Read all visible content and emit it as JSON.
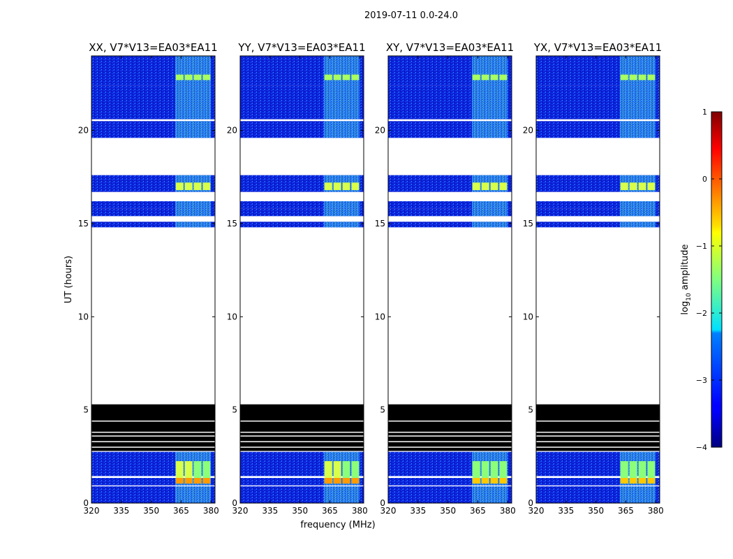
{
  "figure": {
    "title": "2019-07-11 0.0-24.0",
    "xlabel": "frequency (MHz)",
    "ylabel": "UT (hours)",
    "colorbar": {
      "label": "log10 amplitude",
      "label_prefix": "log",
      "label_sub": "10",
      "label_suffix": " amplitude",
      "range": [
        -4,
        1
      ],
      "ticks": [
        1,
        0,
        -1,
        -2,
        -3,
        -4
      ],
      "tick_labels": [
        "1",
        "0",
        "−1",
        "−2",
        "−3",
        "−4"
      ],
      "colormap": "jet"
    }
  },
  "chart_data": {
    "type": "heatmap",
    "description_units": {
      "x": "MHz",
      "y": "UT hours",
      "z": "log10 amplitude"
    },
    "xlim": [
      320,
      382
    ],
    "ylim": [
      0,
      24
    ],
    "xticks": [
      320,
      335,
      350,
      365,
      380
    ],
    "xtick_labels": [
      "320",
      "335",
      "350",
      "365",
      "380"
    ],
    "yticks": [
      0,
      5,
      10,
      15,
      20
    ],
    "ytick_labels": [
      "0",
      "5",
      "10",
      "15",
      "20"
    ],
    "panels": [
      {
        "title": "XX, V7*V13=EA03*EA11",
        "polarization": "XX"
      },
      {
        "title": "YY, V7*V13=EA03*EA11",
        "polarization": "YY"
      },
      {
        "title": "XY, V7*V13=EA03*EA11",
        "polarization": "XY"
      },
      {
        "title": "YX, V7*V13=EA03*EA11",
        "polarization": "YX"
      }
    ],
    "data_segments_ut": [
      [
        0.0,
        0.9
      ],
      [
        0.95,
        1.35
      ],
      [
        1.45,
        2.75
      ],
      [
        2.8,
        5.3
      ],
      [
        14.8,
        15.1
      ],
      [
        15.4,
        15.8
      ],
      [
        15.8,
        16.2
      ],
      [
        16.7,
        17.6
      ],
      [
        19.6,
        20.5
      ],
      [
        20.6,
        22.4
      ],
      [
        22.4,
        24.0
      ]
    ],
    "zero_amplitude_ut": [
      2.8,
      5.3
    ],
    "rfi_band_mhz": [
      362,
      380
    ],
    "rfi_strong_ut": [
      1.05,
      2.25
    ],
    "values_log10": {
      "background": -3.4,
      "rfi_band": -2.0,
      "rfi_strong": -1.3,
      "rfi_peak_row": -0.2,
      "zero": "masked-black"
    }
  }
}
